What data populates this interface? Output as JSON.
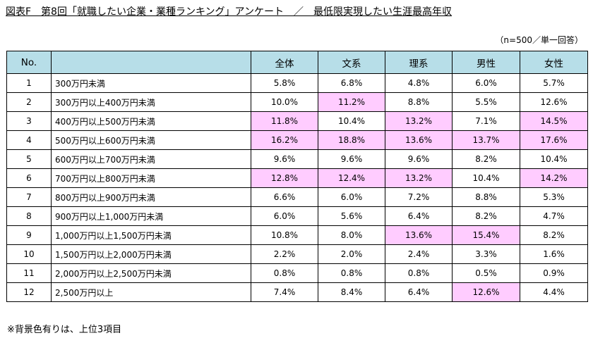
{
  "title": "図表F　第8回「就職したい企業・業種ランキング」アンケート　／　最低限実現したい生涯最高年収",
  "sample_note": "（n=500／単一回答）",
  "highlight_color": "#ffccff",
  "header_color": "#b7dee8",
  "headers": [
    "No.",
    "",
    "全体",
    "文系",
    "理系",
    "男性",
    "女性"
  ],
  "rows": [
    {
      "no": "1",
      "label": "300万円未満",
      "values": [
        "5.8%",
        "6.8%",
        "4.8%",
        "6.0%",
        "5.7%"
      ],
      "highlight": [
        false,
        false,
        false,
        false,
        false
      ]
    },
    {
      "no": "2",
      "label": "300万円以上400万円未満",
      "values": [
        "10.0%",
        "11.2%",
        "8.8%",
        "5.5%",
        "12.6%"
      ],
      "highlight": [
        false,
        true,
        false,
        false,
        false
      ]
    },
    {
      "no": "3",
      "label": "400万円以上500万円未満",
      "values": [
        "11.8%",
        "10.4%",
        "13.2%",
        "7.1%",
        "14.5%"
      ],
      "highlight": [
        true,
        false,
        true,
        false,
        true
      ]
    },
    {
      "no": "4",
      "label": "500万円以上600万円未満",
      "values": [
        "16.2%",
        "18.8%",
        "13.6%",
        "13.7%",
        "17.6%"
      ],
      "highlight": [
        true,
        true,
        true,
        true,
        true
      ]
    },
    {
      "no": "5",
      "label": "600万円以上700万円未満",
      "values": [
        "9.6%",
        "9.6%",
        "9.6%",
        "8.2%",
        "10.4%"
      ],
      "highlight": [
        false,
        false,
        false,
        false,
        false
      ]
    },
    {
      "no": "6",
      "label": "700万円以上800万円未満",
      "values": [
        "12.8%",
        "12.4%",
        "13.2%",
        "10.4%",
        "14.2%"
      ],
      "highlight": [
        true,
        true,
        true,
        false,
        true
      ]
    },
    {
      "no": "7",
      "label": "800万円以上900万円未満",
      "values": [
        "6.6%",
        "6.0%",
        "7.2%",
        "8.8%",
        "5.3%"
      ],
      "highlight": [
        false,
        false,
        false,
        false,
        false
      ]
    },
    {
      "no": "8",
      "label": "900万円以上1,000万円未満",
      "values": [
        "6.0%",
        "5.6%",
        "6.4%",
        "8.2%",
        "4.7%"
      ],
      "highlight": [
        false,
        false,
        false,
        false,
        false
      ]
    },
    {
      "no": "9",
      "label": "1,000万円以上1,500万円未満",
      "values": [
        "10.8%",
        "8.0%",
        "13.6%",
        "15.4%",
        "8.2%"
      ],
      "highlight": [
        false,
        false,
        true,
        true,
        false
      ]
    },
    {
      "no": "10",
      "label": "1,500万円以上2,000万円未満",
      "values": [
        "2.2%",
        "2.0%",
        "2.4%",
        "3.3%",
        "1.6%"
      ],
      "highlight": [
        false,
        false,
        false,
        false,
        false
      ]
    },
    {
      "no": "11",
      "label": "2,000万円以上2,500万円未満",
      "values": [
        "0.8%",
        "0.8%",
        "0.8%",
        "0.5%",
        "0.9%"
      ],
      "highlight": [
        false,
        false,
        false,
        false,
        false
      ]
    },
    {
      "no": "12",
      "label": "2,500万円以上",
      "values": [
        "7.4%",
        "8.4%",
        "6.4%",
        "12.6%",
        "4.4%"
      ],
      "highlight": [
        false,
        false,
        false,
        true,
        false
      ]
    }
  ],
  "footnote": "※背景色有りは、上位3項目"
}
